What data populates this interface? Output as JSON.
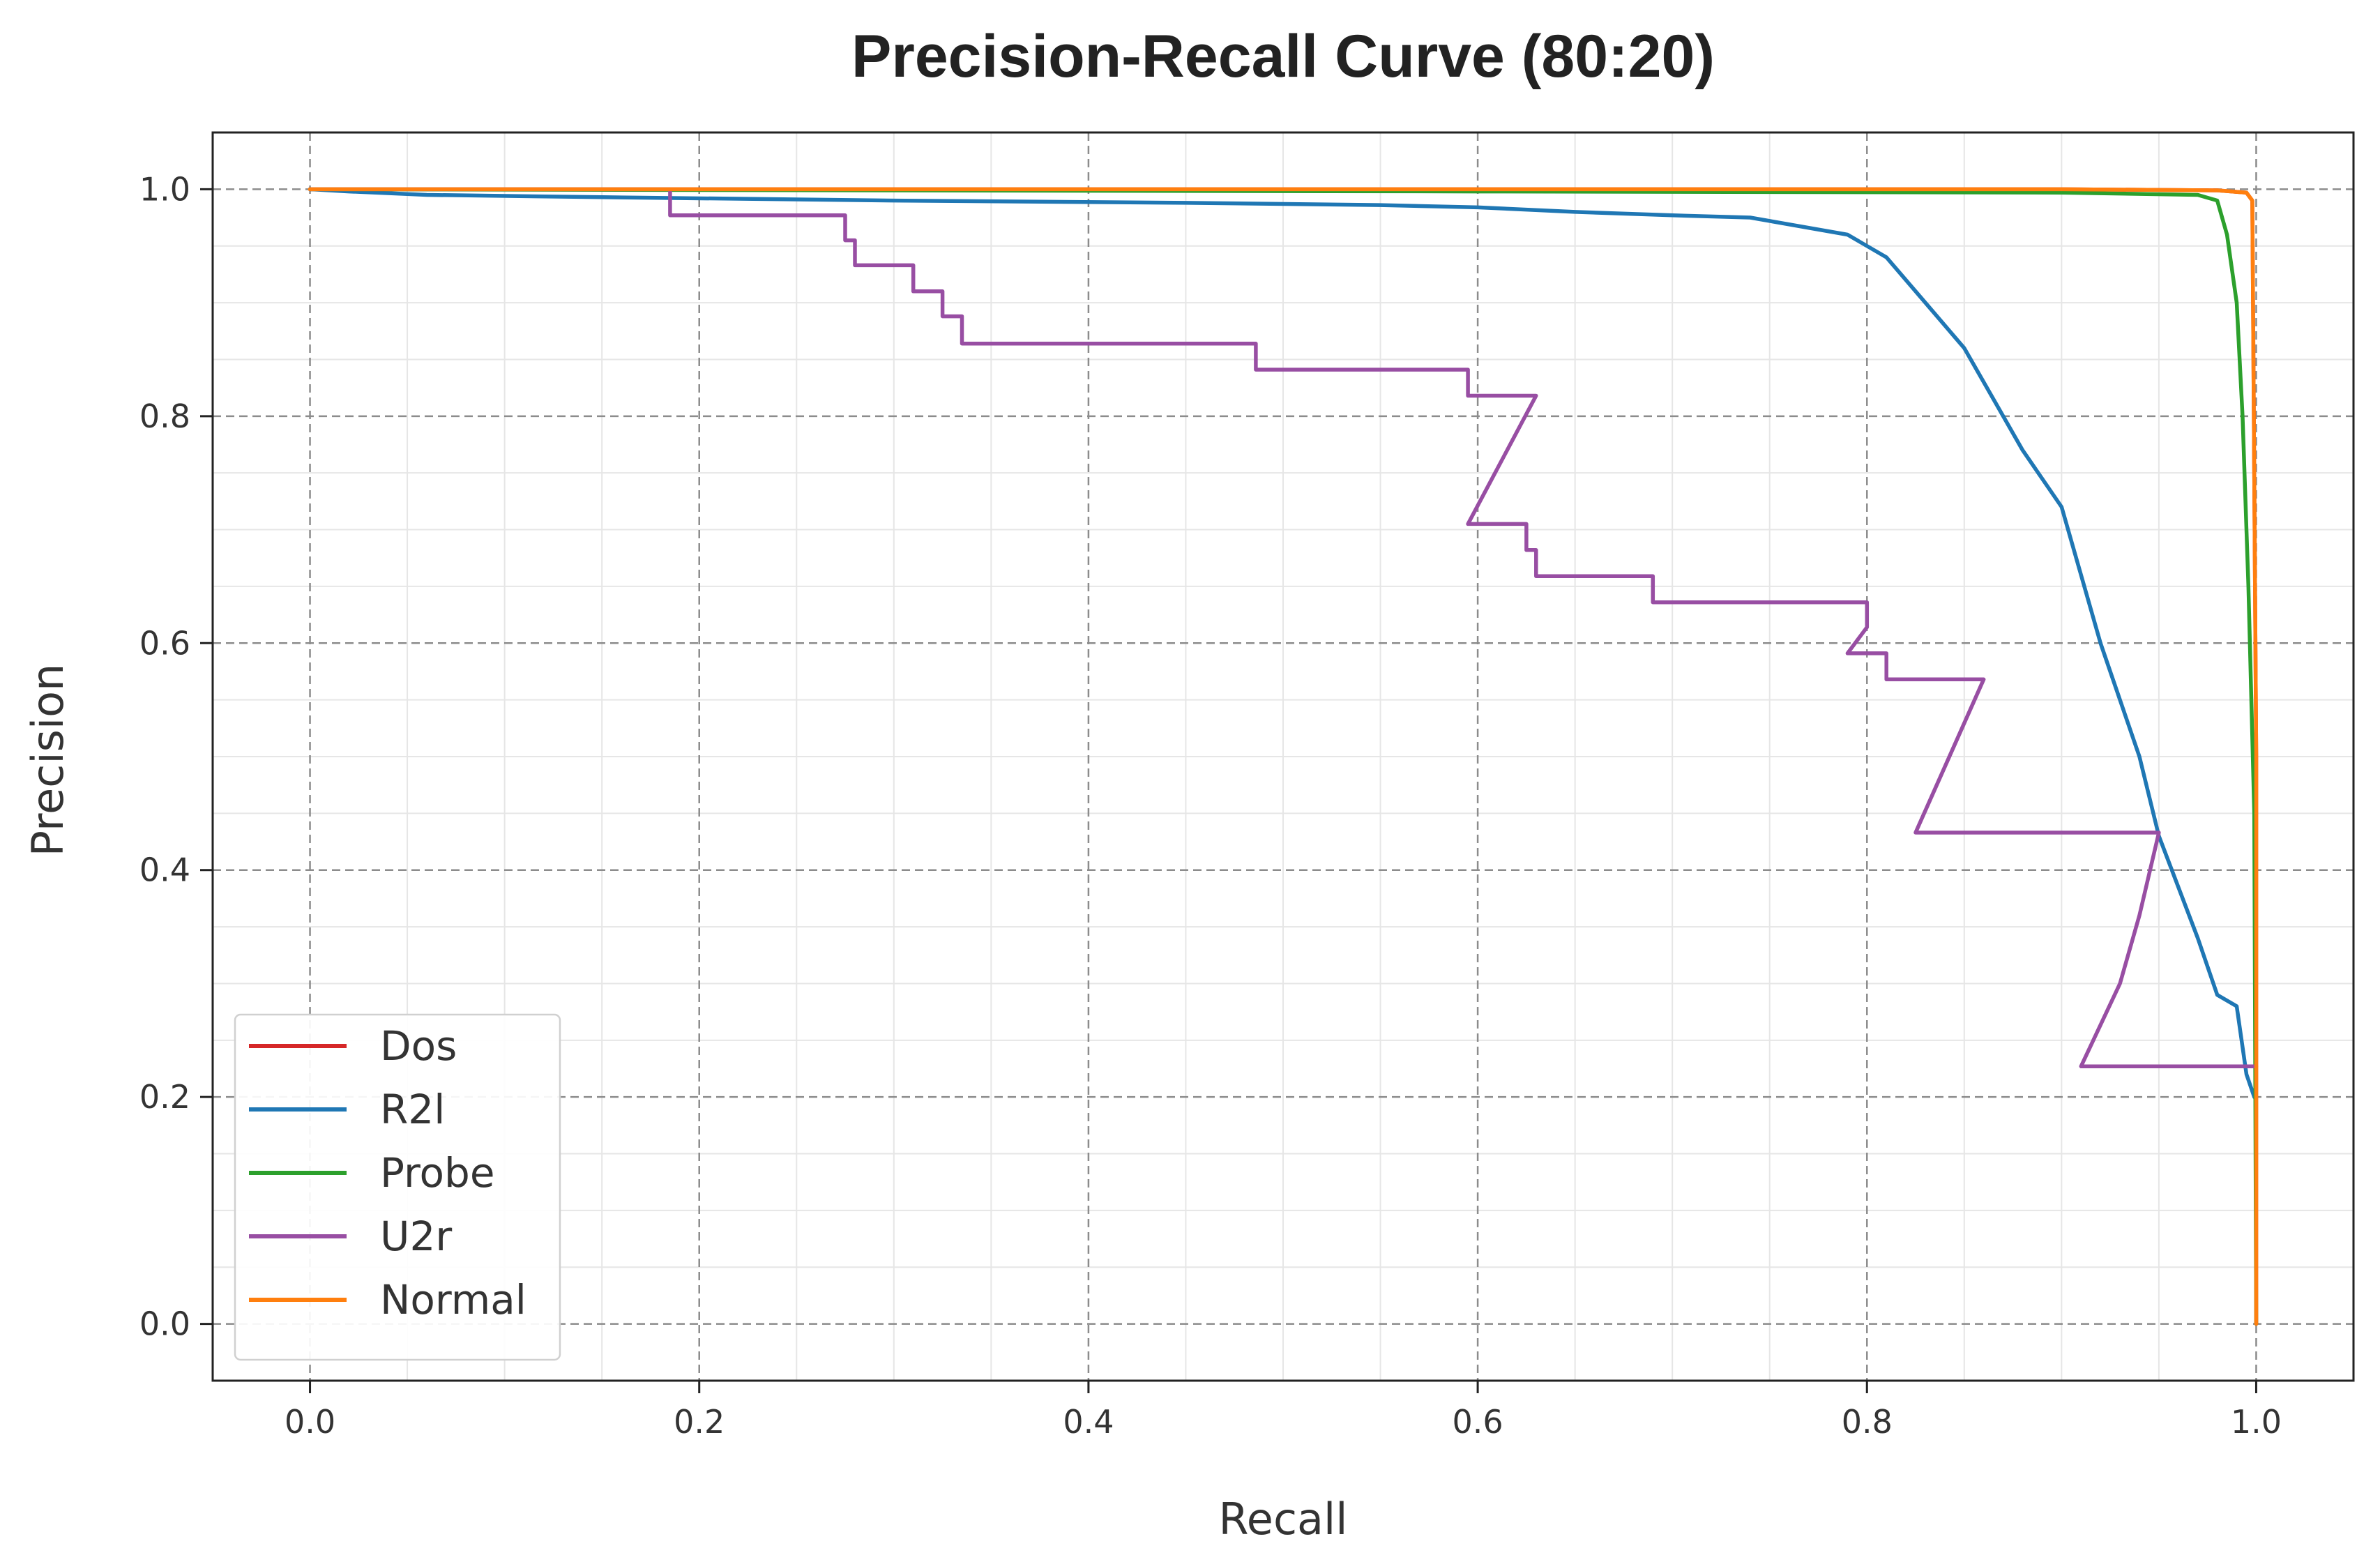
{
  "chart_data": {
    "type": "line",
    "title": "Precision-Recall Curve (80:20)",
    "xlabel": "Recall",
    "ylabel": "Precision",
    "xlim": [
      -0.05,
      1.05
    ],
    "ylim": [
      -0.05,
      1.05
    ],
    "grid": true,
    "legend_position": "lower-left",
    "xticks": [
      0.0,
      0.2,
      0.4,
      0.6,
      0.8,
      1.0
    ],
    "xtick_labels": [
      "0.0",
      "0.2",
      "0.4",
      "0.6",
      "0.8",
      "1.0"
    ],
    "yticks": [
      0.0,
      0.2,
      0.4,
      0.6,
      0.8,
      1.0
    ],
    "ytick_labels": [
      "0.0",
      "0.2",
      "0.4",
      "0.6",
      "0.8",
      "1.0"
    ],
    "series": [
      {
        "name": "Dos",
        "color": "#d62728",
        "x": [
          0.0,
          0.5,
          0.9,
          0.98,
          0.995,
          0.998,
          1.0,
          1.0
        ],
        "y": [
          1.0,
          1.0,
          1.0,
          0.999,
          0.997,
          0.99,
          0.5,
          0.0
        ]
      },
      {
        "name": "R2l",
        "color": "#1f77b4",
        "x": [
          0.0,
          0.02,
          0.06,
          0.15,
          0.3,
          0.45,
          0.55,
          0.6,
          0.65,
          0.7,
          0.74,
          0.79,
          0.81,
          0.83,
          0.85,
          0.87,
          0.88,
          0.9,
          0.92,
          0.94,
          0.95,
          0.97,
          0.98,
          0.99,
          0.995,
          0.999,
          1.0
        ],
        "y": [
          1.0,
          0.998,
          0.995,
          0.993,
          0.99,
          0.988,
          0.986,
          0.984,
          0.98,
          0.977,
          0.975,
          0.96,
          0.94,
          0.9,
          0.86,
          0.8,
          0.77,
          0.72,
          0.6,
          0.5,
          0.43,
          0.34,
          0.29,
          0.28,
          0.22,
          0.2,
          0.2
        ]
      },
      {
        "name": "Probe",
        "color": "#2ca02c",
        "x": [
          0.0,
          0.3,
          0.6,
          0.9,
          0.97,
          0.98,
          0.985,
          0.99,
          0.993,
          0.996,
          0.999,
          1.0
        ],
        "y": [
          1.0,
          0.999,
          0.998,
          0.997,
          0.995,
          0.99,
          0.96,
          0.9,
          0.8,
          0.65,
          0.45,
          0.0
        ]
      },
      {
        "name": "U2r",
        "color": "#984ea3",
        "x": [
          0.0,
          0.185,
          0.185,
          0.275,
          0.275,
          0.28,
          0.28,
          0.31,
          0.31,
          0.325,
          0.325,
          0.335,
          0.335,
          0.486,
          0.486,
          0.595,
          0.595,
          0.63,
          0.595,
          0.625,
          0.625,
          0.63,
          0.63,
          0.69,
          0.69,
          0.8,
          0.8,
          0.79,
          0.79,
          0.81,
          0.81,
          0.86,
          0.825,
          0.95,
          0.94,
          0.93,
          0.91,
          1.0
        ],
        "y": [
          1.0,
          1.0,
          0.977,
          0.977,
          0.955,
          0.955,
          0.933,
          0.933,
          0.91,
          0.91,
          0.888,
          0.888,
          0.864,
          0.864,
          0.841,
          0.841,
          0.818,
          0.818,
          0.705,
          0.705,
          0.682,
          0.682,
          0.659,
          0.659,
          0.636,
          0.636,
          0.614,
          0.591,
          0.591,
          0.591,
          0.568,
          0.568,
          0.433,
          0.433,
          0.36,
          0.3,
          0.227,
          0.227
        ]
      },
      {
        "name": "Normal",
        "color": "#ff7f0e",
        "x": [
          0.0,
          0.36,
          0.53,
          0.9,
          0.98,
          0.995,
          0.998,
          1.0,
          1.0
        ],
        "y": [
          1.0,
          1.0,
          1.0,
          1.0,
          0.999,
          0.997,
          0.99,
          0.5,
          0.0
        ]
      }
    ]
  }
}
